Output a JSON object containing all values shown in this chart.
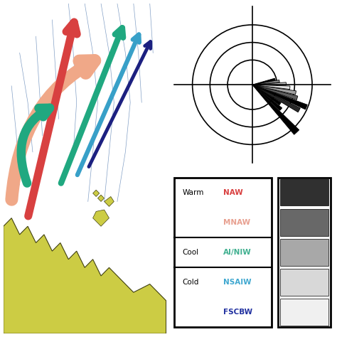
{
  "background_color": "#ffffff",
  "map_bg": "#c8d8e8",
  "land_color": "#cccc44",
  "rose_bg": "#f2c49e",
  "legend_items": [
    {
      "left": "Warm",
      "right": "NAW",
      "color": "#d94040"
    },
    {
      "left": "",
      "right": "MNAW",
      "color": "#e8a090"
    },
    {
      "left": "Cool",
      "right": "AI/NIW",
      "color": "#40b090"
    },
    {
      "left": "Cold",
      "right": "NSAIW",
      "color": "#40a8d0"
    },
    {
      "left": "",
      "right": "FSCBW",
      "color": "#2030a0"
    }
  ],
  "rose_wedges": [
    {
      "theta1": -50,
      "theta2": -44,
      "r": 1.0,
      "color": "#000000"
    },
    {
      "theta1": -43,
      "theta2": -38,
      "r": 0.58,
      "color": "#000000"
    },
    {
      "theta1": -37,
      "theta2": -32,
      "r": 0.52,
      "color": "#000000"
    },
    {
      "theta1": -31,
      "theta2": -26,
      "r": 0.82,
      "color": "#282828"
    },
    {
      "theta1": -25,
      "theta2": -20,
      "r": 0.9,
      "color": "#000000"
    },
    {
      "theta1": -19,
      "theta2": -14,
      "r": 0.72,
      "color": "#606060"
    },
    {
      "theta1": -13,
      "theta2": -8,
      "r": 0.68,
      "color": "#a0a0a0"
    },
    {
      "theta1": -7,
      "theta2": -2,
      "r": 0.58,
      "color": "#e0e0e0"
    },
    {
      "theta1": -1,
      "theta2": 4,
      "r": 0.52,
      "color": "#c8c8c8"
    },
    {
      "theta1": 5,
      "theta2": 10,
      "r": 0.42,
      "color": "#909090"
    },
    {
      "theta1": 11,
      "theta2": 16,
      "r": 0.36,
      "color": "#000000"
    }
  ]
}
